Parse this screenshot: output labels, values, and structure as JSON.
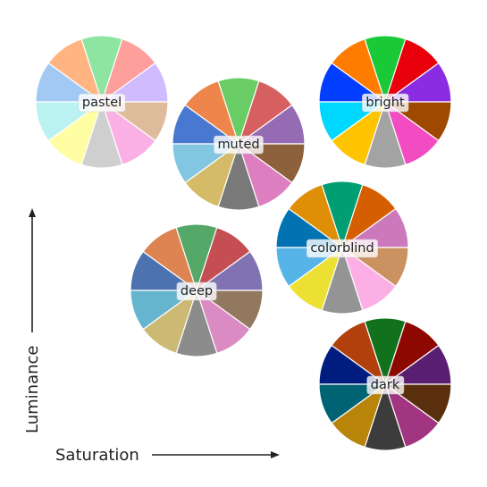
{
  "axes": {
    "x_label": "Saturation",
    "y_label": "Luminance"
  },
  "palettes": [
    {
      "name": "pastel",
      "colors": [
        "#a1c9f4",
        "#ffb482",
        "#8de5a1",
        "#ff9f9b",
        "#d0bbff",
        "#debb9b",
        "#fab0e4",
        "#cfcfcf",
        "#fffea3",
        "#b9f2f0"
      ]
    },
    {
      "name": "muted",
      "colors": [
        "#4878d0",
        "#ee854a",
        "#6acc64",
        "#d65f5f",
        "#956cb4",
        "#8c613c",
        "#dc7ec0",
        "#797979",
        "#d5bb67",
        "#82c6e2"
      ]
    },
    {
      "name": "bright",
      "colors": [
        "#023eff",
        "#ff7c00",
        "#1ac938",
        "#e8000b",
        "#8b2be2",
        "#9f4800",
        "#f14cc1",
        "#a3a3a3",
        "#ffc400",
        "#00d7ff"
      ]
    },
    {
      "name": "colorblind",
      "colors": [
        "#0173b2",
        "#de8f05",
        "#029e73",
        "#d55e00",
        "#cc78bc",
        "#ca9161",
        "#fbafe4",
        "#949494",
        "#ece133",
        "#56b4e9"
      ]
    },
    {
      "name": "deep",
      "colors": [
        "#4c72b0",
        "#dd8452",
        "#55a868",
        "#c44e52",
        "#8172b3",
        "#937860",
        "#da8bc3",
        "#8c8c8c",
        "#ccb974",
        "#64b5cd"
      ]
    },
    {
      "name": "dark",
      "colors": [
        "#001c7f",
        "#b1400d",
        "#12711c",
        "#8c0800",
        "#591e71",
        "#592f0d",
        "#a23582",
        "#3c3c3c",
        "#b8850a",
        "#006374"
      ]
    }
  ]
}
